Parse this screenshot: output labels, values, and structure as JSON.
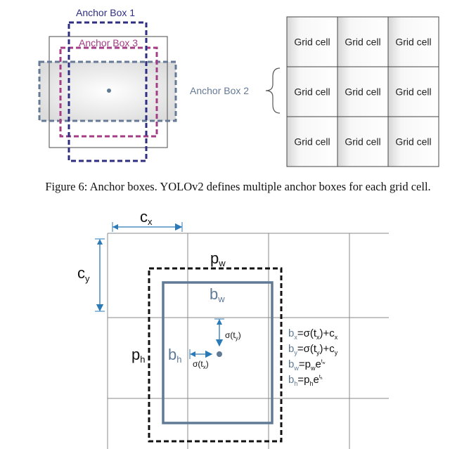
{
  "figure_top": {
    "anchor_box_1": "Anchor Box 1",
    "anchor_box_2": "Anchor Box 2",
    "anchor_box_3": "Anchor Box 3",
    "grid_cell_label": "Grid cell",
    "grid_cells": [
      "Grid cell",
      "Grid cell",
      "Grid cell",
      "Grid cell",
      "Grid cell",
      "Grid cell",
      "Grid cell",
      "Grid cell",
      "Grid cell"
    ],
    "colors": {
      "anchor1": "#2e2e82",
      "anchor2": "#667a95",
      "anchor3": "#a53d86"
    }
  },
  "caption": "Figure 6: Anchor boxes. YOLOv2 defines multiple anchor boxes for each grid cell.",
  "figure_bottom": {
    "cx": {
      "base": "c",
      "sub": "x"
    },
    "cy": {
      "base": "c",
      "sub": "y"
    },
    "pw": {
      "base": "p",
      "sub": "w"
    },
    "ph": {
      "base": "p",
      "sub": "h"
    },
    "bw": {
      "base": "b",
      "sub": "w"
    },
    "bh": {
      "base": "b",
      "sub": "h"
    },
    "sigma_ty": {
      "pre": "σ(t",
      "sub": "y",
      "post": ")"
    },
    "sigma_tx": {
      "pre": "σ(t",
      "sub": "x",
      "post": ")"
    },
    "equations": [
      {
        "lhs": "b",
        "lhs_sub": "x",
        "rhs": "=σ(t",
        "rhs_sub": "x",
        "rhs_post": ")+c",
        "rhs_sub2": "x"
      },
      {
        "lhs": "b",
        "lhs_sub": "y",
        "rhs": "=σ(t",
        "rhs_sub": "y",
        "rhs_post": ")+c",
        "rhs_sub2": "y"
      },
      {
        "lhs": "b",
        "lhs_sub": "w",
        "rhs": "=p",
        "rhs_sub": "w",
        "rhs_post": "e",
        "rhs_sup": "t",
        "rhs_sup_sub": "w"
      },
      {
        "lhs": "b",
        "lhs_sub": "h",
        "rhs": "=p",
        "rhs_sub": "h",
        "rhs_post": "e",
        "rhs_sup": "t",
        "rhs_sup_sub": "h"
      }
    ],
    "colors": {
      "bbox": "#607a95",
      "arrow": "#2a7ab8"
    }
  }
}
